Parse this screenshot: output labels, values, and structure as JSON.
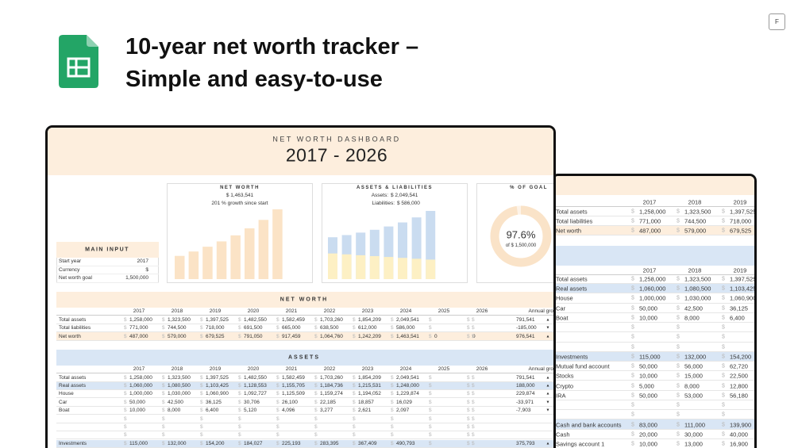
{
  "header": {
    "title_lines": [
      "10-year net worth tracker –",
      "Simple and easy-to-use"
    ],
    "badge": "F"
  },
  "dashboard": {
    "title": "NET WORTH DASHBOARD",
    "years": "2017 - 2026",
    "net_worth_card": {
      "title": "NET WORTH",
      "amount": "$ 1,463,541",
      "growth": "201 %  growth since start",
      "bars": [
        487000,
        579000,
        679525,
        791050,
        917459,
        1064760,
        1242209,
        1463541
      ]
    },
    "assets_card": {
      "title": "ASSETS & LIABILITIES",
      "assets_label": "Assets:",
      "assets": "$ 2,049,541",
      "liabilities_label": "Liabilities:",
      "liabilities": "$ 586,000",
      "assets_bars": [
        1258000,
        1323500,
        1397525,
        1482550,
        1582459,
        1703260,
        1854209,
        2049541
      ],
      "liabilities_bars": [
        771000,
        744500,
        718000,
        691500,
        665000,
        638500,
        612000,
        586000
      ]
    },
    "goal_card": {
      "title": "% OF GOAL",
      "percent_label": "97.6%",
      "percent": 97.6,
      "goal": "of $ 1,500,000"
    },
    "main_input": {
      "title": "MAIN INPUT",
      "rows": [
        [
          "Start year",
          "2017"
        ],
        [
          "Currency",
          "$"
        ],
        [
          "Net worth goal",
          "1,500,000"
        ]
      ]
    },
    "net_worth_table": {
      "title": "NET WORTH",
      "columns": [
        "2017",
        "2018",
        "2019",
        "2020",
        "2021",
        "2022",
        "2023",
        "2024",
        "2025",
        "2026"
      ],
      "growth_header": "Annual gro",
      "rows": [
        {
          "label": "Total assets",
          "values": [
            "1,258,000",
            "1,323,500",
            "1,397,525",
            "1,482,550",
            "1,582,459",
            "1,703,260",
            "1,854,209",
            "2,049,541",
            null,
            null
          ],
          "growth": "791,541",
          "trend": "▲"
        },
        {
          "label": "Total liabilities",
          "values": [
            "771,000",
            "744,500",
            "718,000",
            "691,500",
            "665,000",
            "638,500",
            "612,000",
            "586,000",
            null,
            null
          ],
          "growth": "-185,000",
          "trend": "▼"
        },
        {
          "label": "Net worth",
          "values": [
            "487,000",
            "579,000",
            "679,525",
            "791,050",
            "917,459",
            "1,064,760",
            "1,242,209",
            "1,463,541",
            "0",
            "0"
          ],
          "growth": "976,541",
          "trend": "▲"
        }
      ]
    },
    "assets_table": {
      "title": "ASSETS",
      "columns": [
        "2017",
        "2018",
        "2019",
        "2020",
        "2021",
        "2022",
        "2023",
        "2024",
        "2025",
        "2026"
      ],
      "growth_header": "Annual gro",
      "rows": [
        {
          "label": "Total assets",
          "values": [
            "1,258,000",
            "1,323,500",
            "1,397,525",
            "1,482,550",
            "1,582,459",
            "1,703,260",
            "1,854,209",
            "2,049,541",
            null,
            null
          ],
          "growth": "791,541",
          "trend": "▲"
        },
        {
          "label": "Real assets",
          "values": [
            "1,060,000",
            "1,080,500",
            "1,103,425",
            "1,128,553",
            "1,155,705",
            "1,184,736",
            "1,215,531",
            "1,248,000",
            null,
            null
          ],
          "growth": "188,000",
          "trend": "▲"
        },
        {
          "label": "House",
          "values": [
            "1,000,000",
            "1,030,000",
            "1,060,900",
            "1,092,727",
            "1,125,509",
            "1,159,274",
            "1,194,052",
            "1,229,874",
            null,
            null
          ],
          "growth": "229,874",
          "trend": "▲"
        },
        {
          "label": "Car",
          "values": [
            "50,000",
            "42,500",
            "36,125",
            "30,706",
            "26,100",
            "22,185",
            "18,857",
            "16,029",
            null,
            null
          ],
          "growth": "-33,971",
          "trend": "▼"
        },
        {
          "label": "Boat",
          "values": [
            "10,000",
            "8,000",
            "6,400",
            "5,120",
            "4,096",
            "3,277",
            "2,621",
            "2,097",
            null,
            null
          ],
          "growth": "-7,903",
          "trend": "▼"
        },
        {
          "label": null,
          "values": [
            null,
            null,
            null,
            null,
            null,
            null,
            null,
            null,
            null,
            null
          ],
          "growth": null,
          "trend": null
        },
        {
          "label": null,
          "values": [
            null,
            null,
            null,
            null,
            null,
            null,
            null,
            null,
            null,
            null
          ],
          "growth": null,
          "trend": null
        },
        {
          "label": null,
          "values": [
            null,
            null,
            null,
            null,
            null,
            null,
            null,
            null,
            null,
            null
          ],
          "growth": null,
          "trend": null
        },
        {
          "label": "Investments",
          "values": [
            "115,000",
            "132,000",
            "154,200",
            "184,027",
            "225,193",
            "283,395",
            "367,409",
            "490,793",
            null,
            null
          ],
          "growth": "375,793",
          "trend": "▲"
        }
      ]
    }
  },
  "back_sheet": {
    "tables": [
      {
        "columns": [
          "2017",
          "2018",
          "2019"
        ],
        "rows": [
          {
            "label": "Total assets",
            "values": [
              "1,258,000",
              "1,323,500",
              "1,397,525"
            ]
          },
          {
            "label": "Total liabilities",
            "values": [
              "771,000",
              "744,500",
              "718,000"
            ]
          },
          {
            "label": "Net worth",
            "values": [
              "487,000",
              "579,000",
              "679,525"
            ]
          }
        ]
      },
      {
        "columns": [
          "2017",
          "2018",
          "2019"
        ],
        "rows": [
          {
            "label": "Total assets",
            "values": [
              "1,258,000",
              "1,323,500",
              "1,397,525"
            ]
          },
          {
            "label": "Real assets",
            "values": [
              "1,060,000",
              "1,080,500",
              "1,103,425"
            ]
          },
          {
            "label": "House",
            "values": [
              "1,000,000",
              "1,030,000",
              "1,060,900"
            ]
          },
          {
            "label": "Car",
            "values": [
              "50,000",
              "42,500",
              "36,125"
            ]
          },
          {
            "label": "Boat",
            "values": [
              "10,000",
              "8,000",
              "6,400"
            ]
          },
          {
            "label": null,
            "values": [
              null,
              null,
              null
            ]
          },
          {
            "label": null,
            "values": [
              null,
              null,
              null
            ]
          },
          {
            "label": null,
            "values": [
              null,
              null,
              null
            ]
          },
          {
            "label": "Investments",
            "values": [
              "115,000",
              "132,000",
              "154,200"
            ]
          },
          {
            "label": "Mutual fund account",
            "values": [
              "50,000",
              "56,000",
              "62,720"
            ]
          },
          {
            "label": "Stocks",
            "values": [
              "10,000",
              "15,000",
              "22,500"
            ]
          },
          {
            "label": "Crypto",
            "values": [
              "5,000",
              "8,000",
              "12,800"
            ]
          },
          {
            "label": "IRA",
            "values": [
              "50,000",
              "53,000",
              "56,180"
            ]
          },
          {
            "label": null,
            "values": [
              null,
              null,
              null
            ]
          },
          {
            "label": null,
            "values": [
              null,
              null,
              null
            ]
          },
          {
            "label": "Cash and bank accounts",
            "values": [
              "83,000",
              "111,000",
              "139,900"
            ]
          },
          {
            "label": "Cash",
            "values": [
              "20,000",
              "30,000",
              "40,000"
            ]
          },
          {
            "label": "Savings account 1",
            "values": [
              "10,000",
              "13,000",
              "16,900"
            ]
          }
        ]
      }
    ]
  }
}
